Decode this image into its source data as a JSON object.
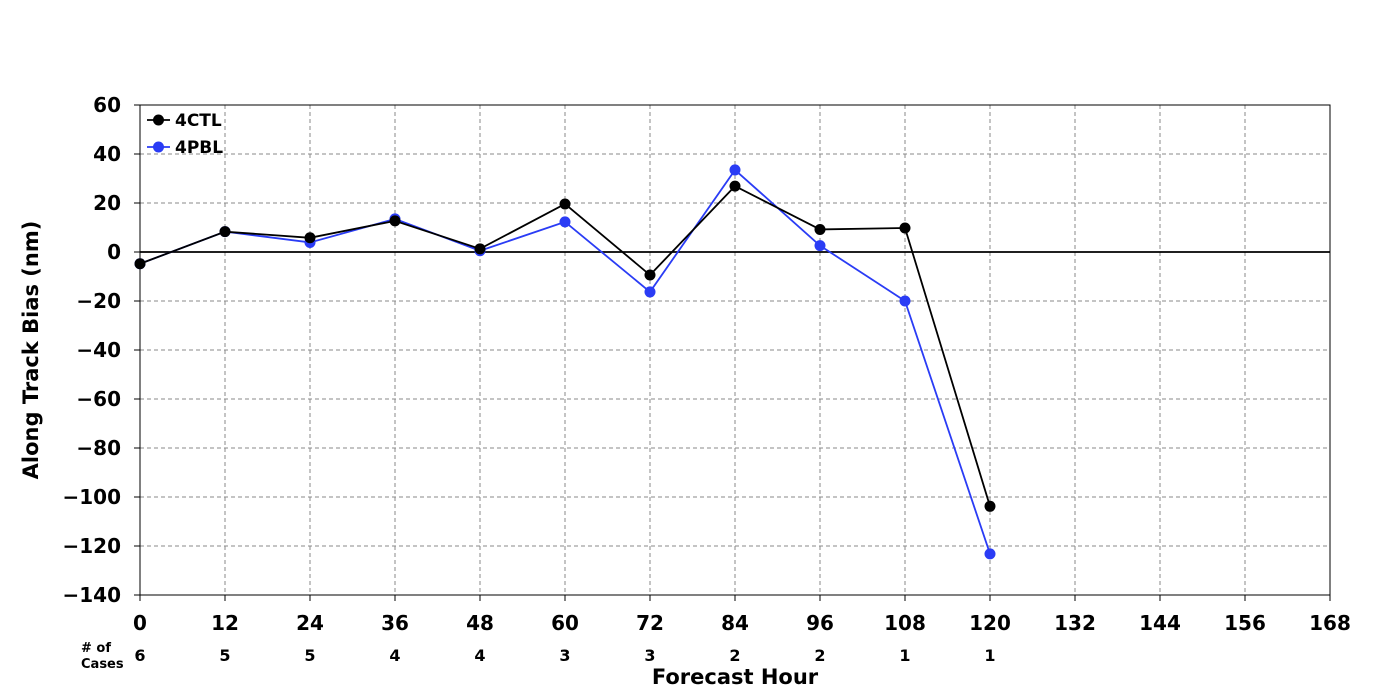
{
  "chart_data": {
    "type": "line",
    "xlabel": "Forecast Hour",
    "ylabel": "Along Track Bias (nm)",
    "xlim": [
      0,
      168
    ],
    "ylim": [
      -140,
      60
    ],
    "x_ticks": [
      "0",
      "12",
      "24",
      "36",
      "48",
      "60",
      "72",
      "84",
      "96",
      "108",
      "120",
      "132",
      "144",
      "156",
      "168"
    ],
    "y_ticks": [
      "60",
      "40",
      "20",
      "0",
      "−20",
      "−40",
      "−60",
      "−80",
      "−100",
      "−120",
      "−140"
    ],
    "grid": true,
    "legend_position": "top-left",
    "x": [
      0,
      12,
      24,
      36,
      48,
      60,
      72,
      84,
      96,
      108,
      120
    ],
    "series": [
      {
        "name": "4CTL",
        "color": "#000000",
        "values": [
          -4.8,
          8.3,
          5.8,
          12.7,
          1.3,
          19.6,
          -9.4,
          26.9,
          9.2,
          9.8,
          -103.8
        ]
      },
      {
        "name": "4PBL",
        "color": "#2a3cf5",
        "values": [
          -4.8,
          8.3,
          3.9,
          13.5,
          0.5,
          12.3,
          -16.3,
          33.5,
          2.6,
          -20.0,
          -123.2
        ]
      }
    ],
    "cases": {
      "label_line1": "# of",
      "label_line2": "Cases",
      "x": [
        0,
        12,
        24,
        36,
        48,
        60,
        72,
        84,
        96,
        108,
        120
      ],
      "counts": [
        "6",
        "5",
        "5",
        "4",
        "4",
        "3",
        "3",
        "2",
        "2",
        "1",
        "1"
      ]
    }
  }
}
